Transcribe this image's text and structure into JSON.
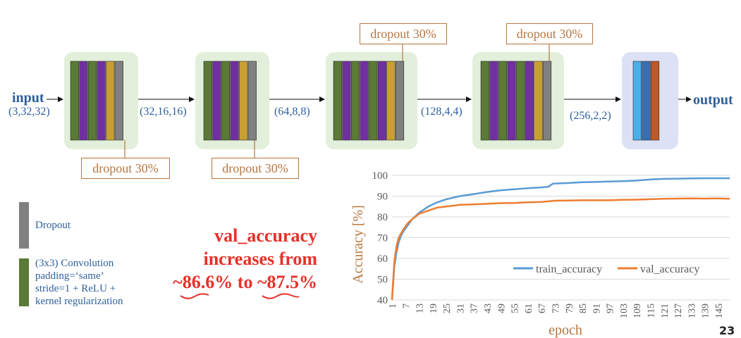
{
  "colors": {
    "conv": "#5a7a35",
    "purple": "#7030a0",
    "gold": "#c8a032",
    "gray": "#808080",
    "sky": "#4aaee8",
    "steel": "#3a6fb0",
    "rust": "#c0592a",
    "block_bg": "#e2efda",
    "out_bg": "#dde1f5",
    "blue_text": "#2e5f9c",
    "orange_text": "#b8763f",
    "red": "#e8302a",
    "train": "#5b9bd5",
    "val": "#ed7d31"
  },
  "flow": {
    "input_label": "input",
    "input_shape": "(3,32,32)",
    "shape_1": "(32,16,16)",
    "shape_2": "(64,8,8)",
    "shape_3": "(128,4,4)",
    "shape_4": "(256,2,2)",
    "output_label": "output"
  },
  "blocks": [
    {
      "name": "block-1",
      "layers": [
        "conv",
        "purple",
        "conv",
        "purple",
        "gold",
        "gray"
      ]
    },
    {
      "name": "block-2",
      "layers": [
        "conv",
        "purple",
        "conv",
        "purple",
        "gold",
        "gray"
      ]
    },
    {
      "name": "block-3",
      "layers": [
        "conv",
        "purple",
        "conv",
        "purple",
        "conv",
        "purple",
        "gold",
        "gray"
      ]
    },
    {
      "name": "block-4",
      "layers": [
        "conv",
        "purple",
        "conv",
        "purple",
        "conv",
        "purple",
        "gold",
        "gray"
      ]
    },
    {
      "name": "output-block",
      "layers": [
        "sky",
        "steel",
        "rust"
      ]
    }
  ],
  "dropouts": {
    "d1": "dropout 30%",
    "d2": "dropout 30%",
    "d3": "dropout 30%",
    "d4": "dropout 30%"
  },
  "legend": {
    "dropout_label": "Dropout",
    "conv_line1": "(3x3) Convolution",
    "conv_line2": "padding=‘same’",
    "conv_line3": "stride=1 + ReLU +",
    "conv_line4": "kernel regularization"
  },
  "note": {
    "line1": "val_accuracy",
    "line2": "increases from",
    "line3_a": "~86.6%",
    "line3_b": " to ",
    "line3_c": "~87.5%"
  },
  "page_number": "23",
  "chart_data": {
    "type": "line",
    "xlabel": "epoch",
    "ylabel": "Accuracy [%]",
    "ylim": [
      40,
      100
    ],
    "yticks": [
      40,
      50,
      60,
      70,
      80,
      90,
      100
    ],
    "xticks": [
      1,
      7,
      13,
      19,
      25,
      31,
      37,
      43,
      49,
      55,
      61,
      67,
      73,
      79,
      85,
      91,
      97,
      103,
      109,
      115,
      121,
      127,
      133,
      139,
      145
    ],
    "xlim": [
      1,
      150
    ],
    "grid": "horizontal",
    "legend_position": "bottom-right",
    "series": [
      {
        "name": "train_accuracy",
        "color": "#5b9bd5",
        "points": [
          [
            1,
            40
          ],
          [
            2,
            56
          ],
          [
            3,
            63
          ],
          [
            4,
            68
          ],
          [
            5,
            71
          ],
          [
            6,
            73
          ],
          [
            8,
            76
          ],
          [
            10,
            79
          ],
          [
            13,
            82
          ],
          [
            17,
            85
          ],
          [
            21,
            87
          ],
          [
            25,
            88.5
          ],
          [
            31,
            90
          ],
          [
            37,
            91
          ],
          [
            43,
            92
          ],
          [
            49,
            92.8
          ],
          [
            55,
            93.3
          ],
          [
            61,
            93.8
          ],
          [
            67,
            94.2
          ],
          [
            70,
            94.5
          ],
          [
            72,
            96
          ],
          [
            79,
            96.3
          ],
          [
            85,
            96.7
          ],
          [
            91,
            96.8
          ],
          [
            97,
            97
          ],
          [
            103,
            97.2
          ],
          [
            109,
            97.5
          ],
          [
            115,
            98
          ],
          [
            121,
            98.3
          ],
          [
            127,
            98.4
          ],
          [
            133,
            98.5
          ],
          [
            139,
            98.6
          ],
          [
            145,
            98.6
          ],
          [
            150,
            98.6
          ]
        ]
      },
      {
        "name": "val_accuracy",
        "color": "#ed7d31",
        "points": [
          [
            1,
            40
          ],
          [
            2,
            58
          ],
          [
            3,
            66
          ],
          [
            4,
            70
          ],
          [
            5,
            72
          ],
          [
            6,
            74
          ],
          [
            8,
            77
          ],
          [
            10,
            79
          ],
          [
            13,
            81.5
          ],
          [
            17,
            83
          ],
          [
            21,
            84.5
          ],
          [
            25,
            85
          ],
          [
            31,
            85.8
          ],
          [
            37,
            86
          ],
          [
            43,
            86.3
          ],
          [
            49,
            86.6
          ],
          [
            55,
            86.7
          ],
          [
            61,
            87
          ],
          [
            67,
            87.2
          ],
          [
            73,
            87.8
          ],
          [
            79,
            87.9
          ],
          [
            85,
            88
          ],
          [
            91,
            88
          ],
          [
            97,
            88
          ],
          [
            103,
            88.2
          ],
          [
            109,
            88.3
          ],
          [
            115,
            88.5
          ],
          [
            121,
            88.7
          ],
          [
            127,
            88.8
          ],
          [
            133,
            88.9
          ],
          [
            139,
            88.8
          ],
          [
            145,
            88.9
          ],
          [
            150,
            88.7
          ]
        ]
      }
    ]
  }
}
